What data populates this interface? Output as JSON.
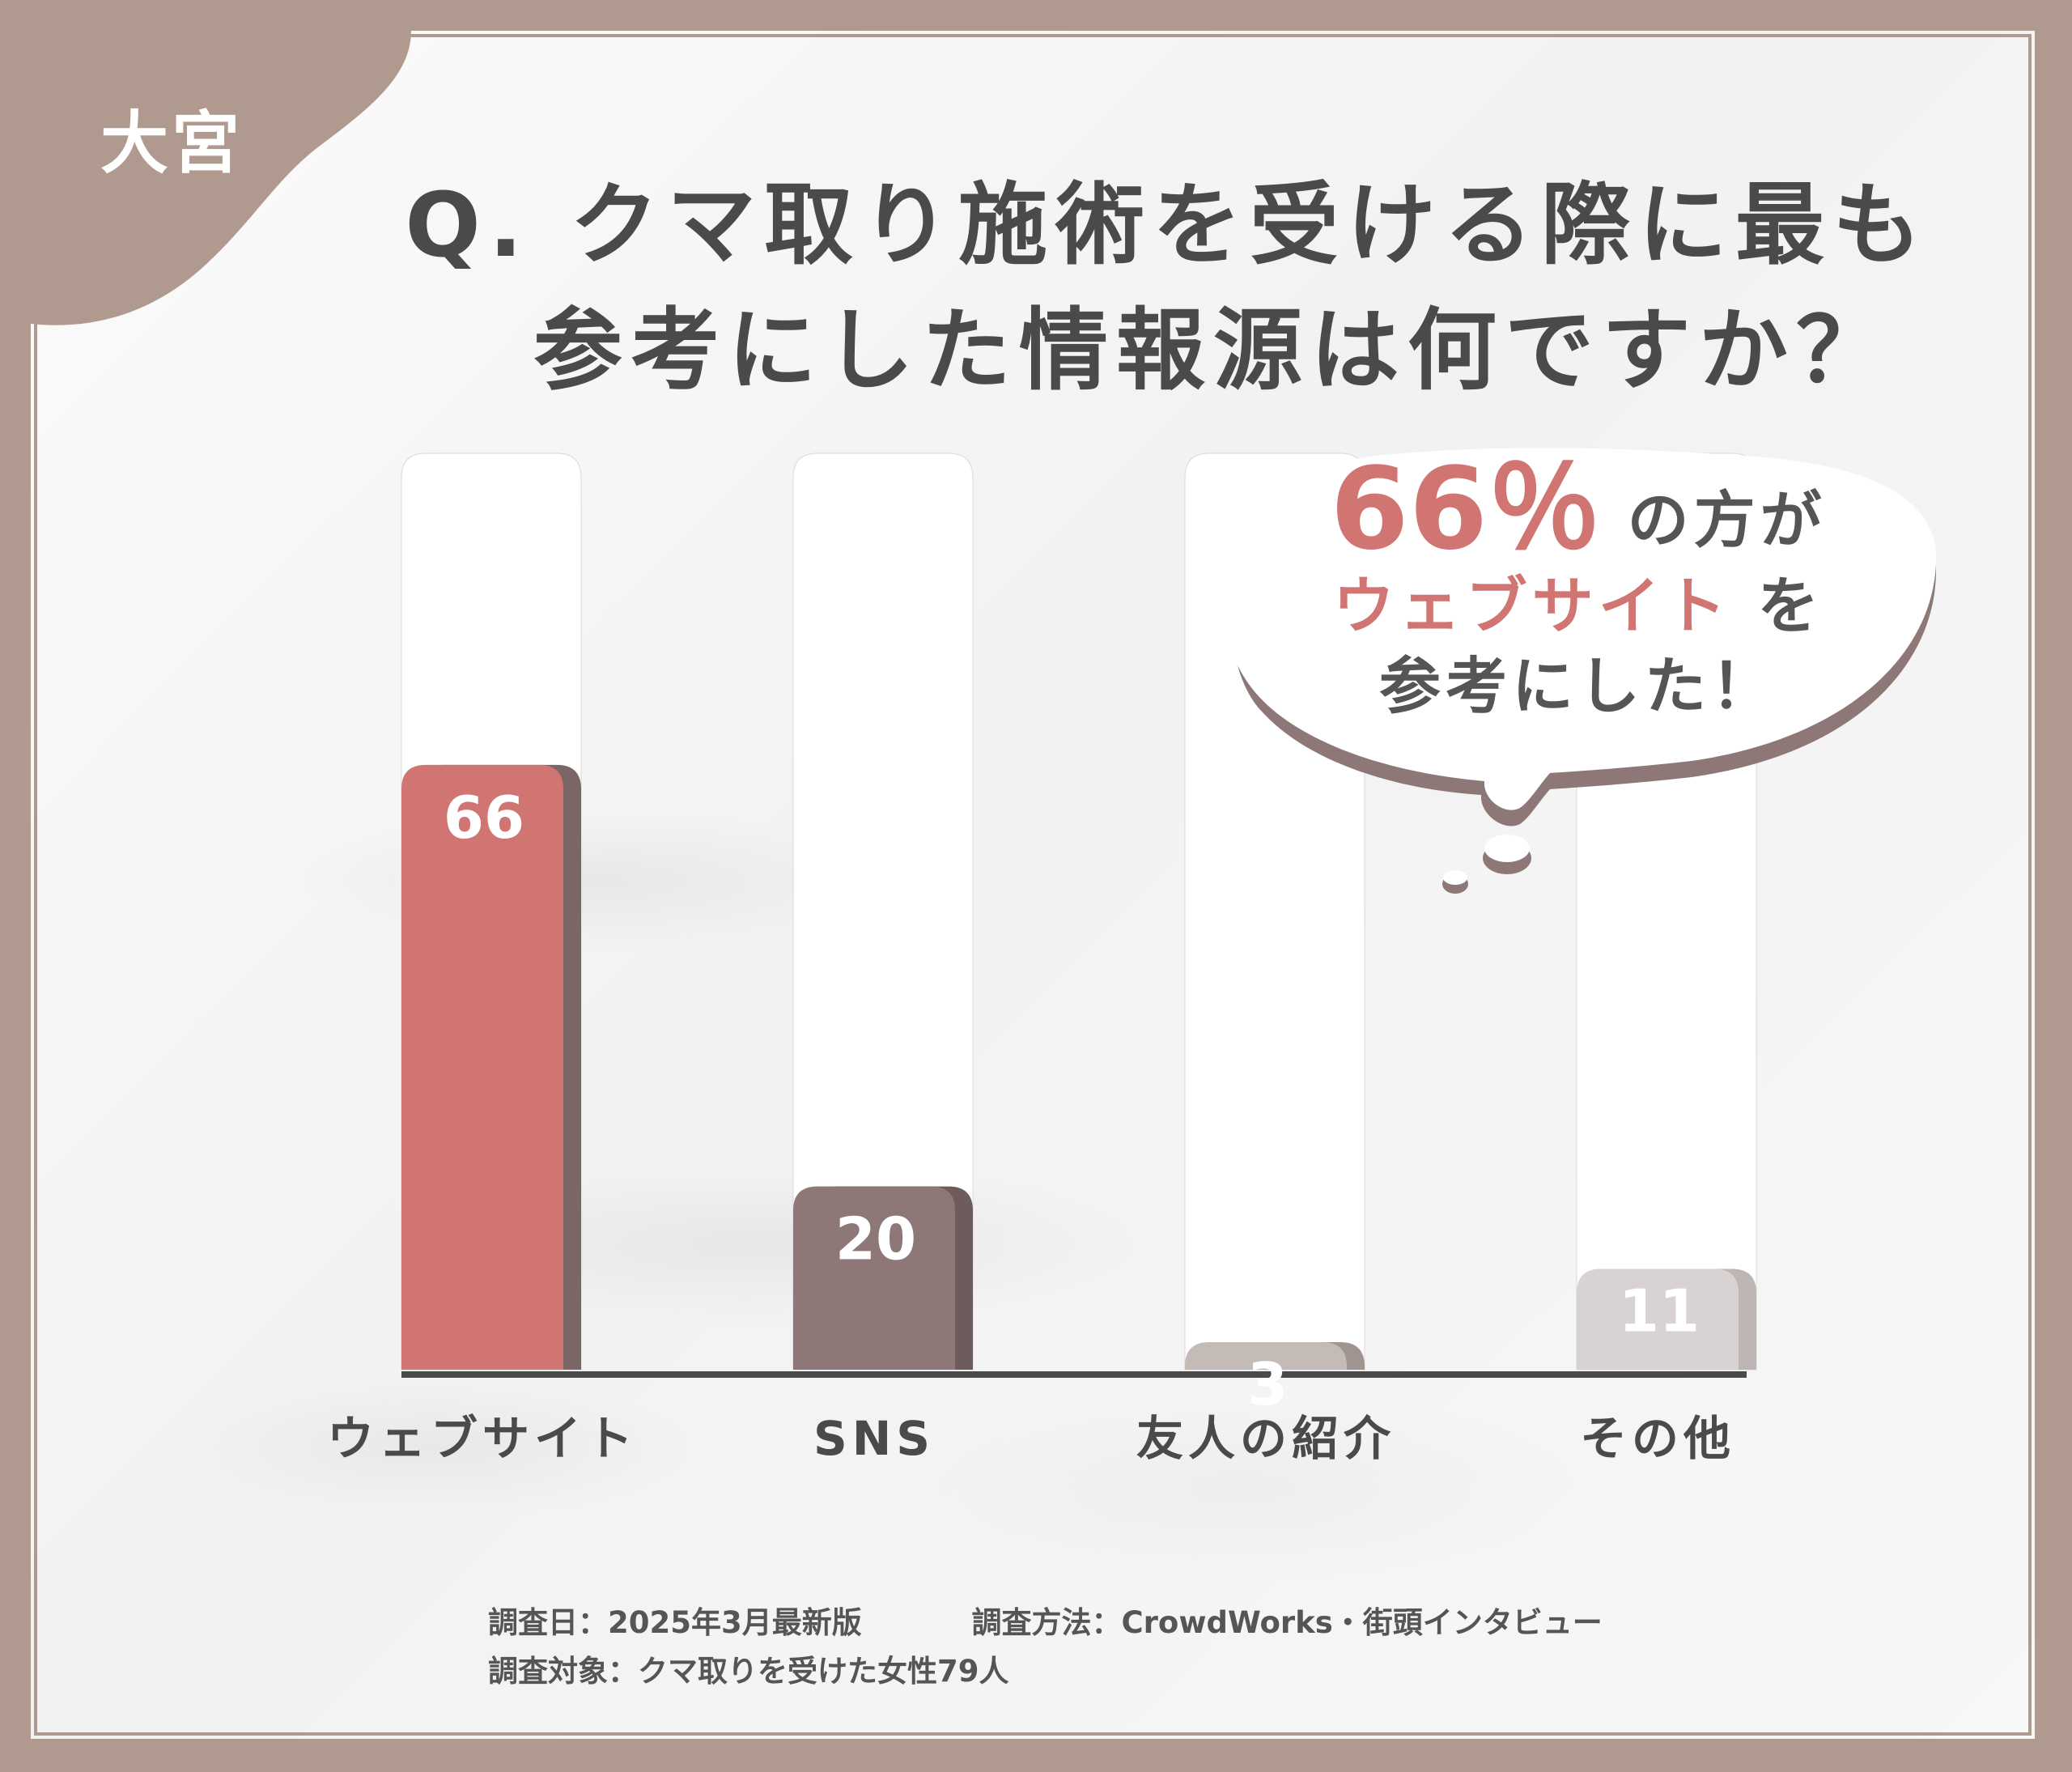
{
  "location_label": "大宮",
  "title": {
    "line1": "Q. クマ取り施術を受ける際に最も",
    "line2": "参考にした情報源は何ですか？"
  },
  "callout": {
    "percent": "66％",
    "text1": "の方が",
    "highlight": "ウェブサイト",
    "text2": "を",
    "text3": "参考にした！"
  },
  "footer": {
    "date": "調査日：2025年3月最新版",
    "method": "調査方法：CrowdWorks・街頭インタビュー",
    "target": "調査対象：クマ取りを受けた女性79人"
  },
  "colors": {
    "frame": "#b09a8f",
    "website_bar": "#d17573",
    "sns_bar": "#8d7877",
    "friend_bar": "#c4bab6",
    "other_bar": "#d8d3d2",
    "axis": "#4a4a4a"
  },
  "chart_data": {
    "type": "bar",
    "categories": [
      "ウェブサイト",
      "SNS",
      "友人の紹介",
      "その他"
    ],
    "values": [
      66,
      20,
      3,
      11
    ],
    "value_labels": [
      "66",
      "20",
      "3",
      "11"
    ],
    "ylim": [
      0,
      100
    ],
    "grid": false,
    "legend": "none"
  }
}
